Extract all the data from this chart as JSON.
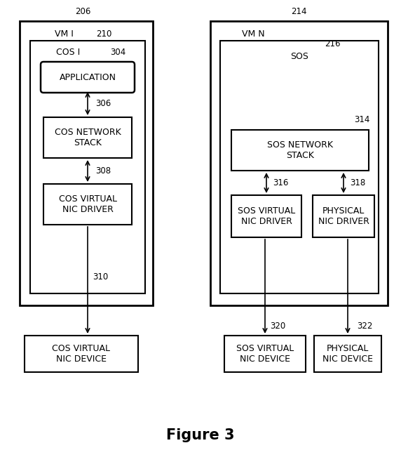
{
  "title": "Figure 3",
  "bg_color": "#ffffff",
  "line_color": "#000000",
  "text_color": "#000000",
  "fig_width": 5.72,
  "fig_height": 6.78,
  "labels": {
    "206": "206",
    "210": "210",
    "214": "214",
    "216": "216",
    "304": "304",
    "306": "306",
    "308": "308",
    "310": "310",
    "314": "314",
    "316": "316",
    "318": "318",
    "320": "320",
    "322": "322",
    "vm1": "VM I",
    "vmn": "VM N",
    "cos1": "COS I",
    "sos": "SOS",
    "application": "APPLICATION",
    "cos_net_stack": "COS NETWORK\nSTACK",
    "cos_virt_nic_driver": "COS VIRTUAL\nNIC DRIVER",
    "cos_virt_nic_device": "COS VIRTUAL\nNIC DEVICE",
    "sos_net_stack": "SOS NETWORK\nSTACK",
    "sos_virt_nic_driver": "SOS VIRTUAL\nNIC DRIVER",
    "phys_nic_driver": "PHYSICAL\nNIC DRIVER",
    "sos_virt_nic_device": "SOS VIRTUAL\nNIC DEVICE",
    "phys_nic_device": "PHYSICAL\nNIC DEVICE"
  }
}
